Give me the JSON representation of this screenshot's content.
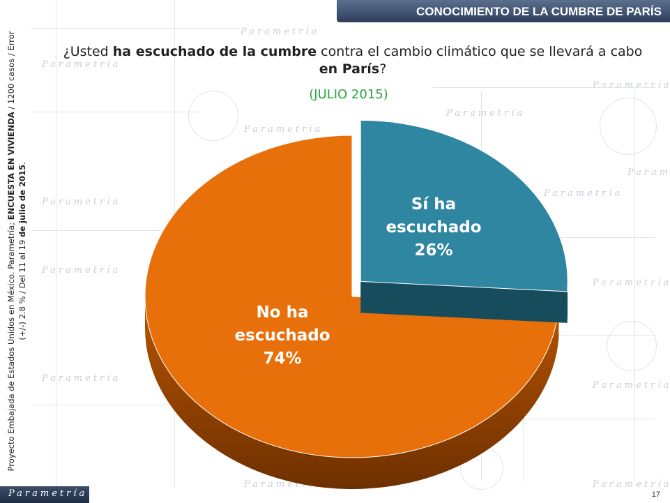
{
  "header": {
    "title": "CONOCIMIENTO DE LA CUMBRE DE PARÍS"
  },
  "question": {
    "part1": "¿Usted ",
    "bold1": "ha escuchado de la cumbre",
    "part2": " contra el cambio climático que se llevará a cabo ",
    "bold2": "en París",
    "part3": "?"
  },
  "period": "(JULIO 2015)",
  "side_note": {
    "line1a": "Proyecto Embajada de Estados Unidos en México. Parametría; ",
    "line1b": "ENCUESTA EN VIVIENDA",
    "line1c": " / 1200 casos / Error",
    "line2a": "(+/-) 2.8 % / Del 11 al 19  ",
    "line2b": "de julio de 2015",
    "line2c": "."
  },
  "watermark": {
    "brand": "Parametría"
  },
  "footer": {
    "brand": "Parametría",
    "page_number": "17"
  },
  "colors": {
    "si": "#2f86a1",
    "no": "#e8700a",
    "banner": "#3a4c6b",
    "period": "#2aa33d"
  },
  "chart_data": {
    "type": "pie",
    "categories": [
      "Sí ha escuchado",
      "No ha escuchado"
    ],
    "values": [
      26,
      74
    ],
    "labels": [
      {
        "line1": "Sí ha",
        "line2": "escuchado",
        "pct": "26%"
      },
      {
        "line1": "No ha",
        "line2": "escuchado",
        "pct": "74%"
      }
    ],
    "exploded": "Sí ha escuchado",
    "three_d": true
  }
}
